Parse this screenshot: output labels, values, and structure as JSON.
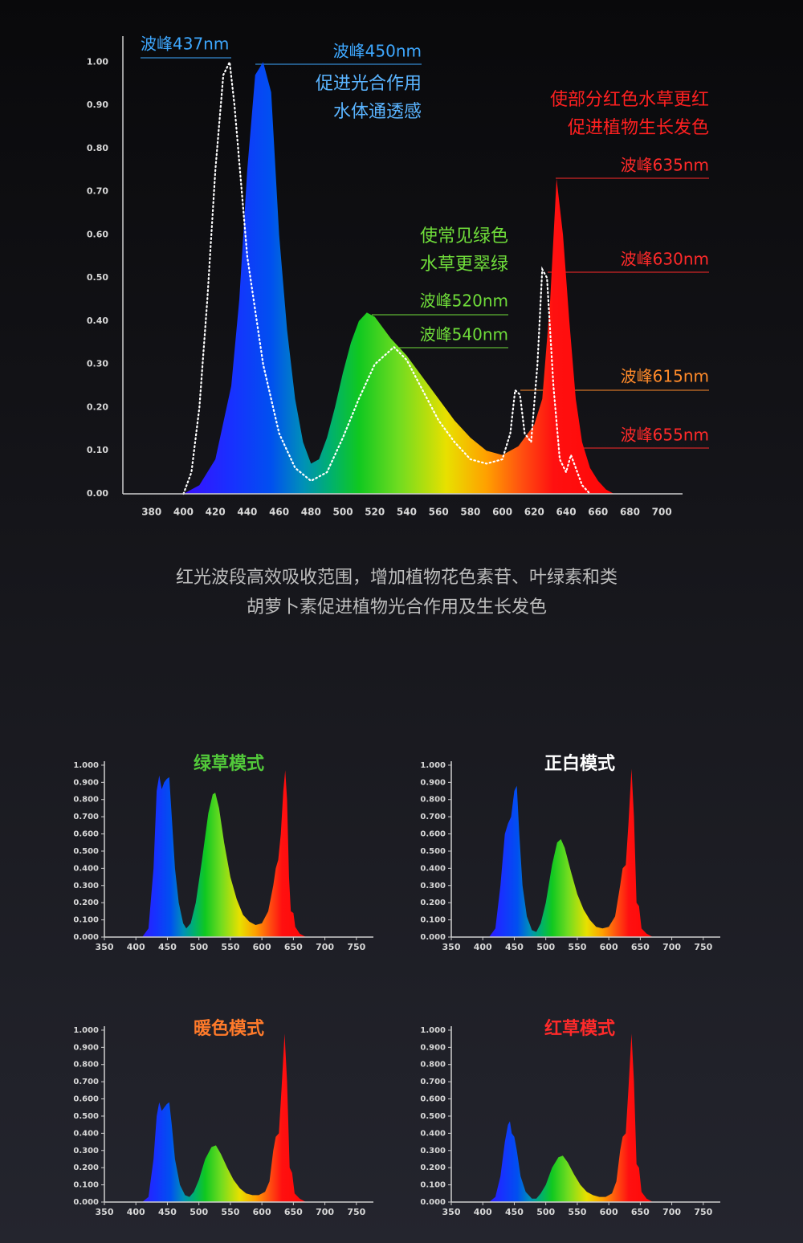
{
  "chart_data": [
    {
      "type": "area",
      "annotations": [
        "波峰437nm",
        "波峰450nm",
        "促进光合作用",
        "水体通透感",
        "使部分红色水草更红",
        "促进植物生长发色",
        "波峰635nm",
        "波峰630nm",
        "波峰615nm",
        "波峰655nm",
        "使常见绿色",
        "水草更翠绿",
        "波峰520nm",
        "波峰540nm"
      ],
      "series": [
        {
          "fill": "spectrum",
          "x": [
            400,
            410,
            420,
            430,
            435,
            440,
            445,
            450,
            455,
            460,
            465,
            470,
            475,
            480,
            485,
            490,
            495,
            500,
            505,
            510,
            515,
            520,
            530,
            540,
            550,
            560,
            570,
            580,
            590,
            600,
            610,
            620,
            625,
            630,
            634,
            638,
            642,
            646,
            650,
            655,
            660,
            665,
            670
          ],
          "values": [
            0,
            0.02,
            0.08,
            0.25,
            0.45,
            0.75,
            0.97,
            1.0,
            0.93,
            0.6,
            0.38,
            0.22,
            0.12,
            0.07,
            0.08,
            0.13,
            0.2,
            0.28,
            0.35,
            0.4,
            0.42,
            0.41,
            0.36,
            0.32,
            0.27,
            0.22,
            0.17,
            0.13,
            0.1,
            0.09,
            0.11,
            0.16,
            0.22,
            0.45,
            0.73,
            0.6,
            0.4,
            0.22,
            0.12,
            0.06,
            0.03,
            0.01,
            0
          ]
        },
        {
          "color": "#ffffff",
          "line_style": "dotted",
          "x": [
            400,
            405,
            410,
            415,
            420,
            425,
            429,
            432,
            440,
            450,
            460,
            470,
            480,
            490,
            500,
            510,
            520,
            532,
            540,
            550,
            560,
            570,
            580,
            590,
            600,
            605,
            608,
            611,
            614,
            618,
            622,
            625,
            628,
            632,
            636,
            640,
            643,
            646,
            650,
            655
          ],
          "values": [
            0,
            0.05,
            0.2,
            0.45,
            0.75,
            0.97,
            1.0,
            0.9,
            0.55,
            0.3,
            0.14,
            0.06,
            0.03,
            0.05,
            0.13,
            0.22,
            0.3,
            0.34,
            0.31,
            0.24,
            0.17,
            0.12,
            0.08,
            0.07,
            0.08,
            0.14,
            0.24,
            0.23,
            0.14,
            0.12,
            0.3,
            0.52,
            0.5,
            0.25,
            0.08,
            0.05,
            0.09,
            0.06,
            0.02,
            0
          ]
        }
      ],
      "xlim": [
        362,
        713
      ],
      "xticks": [
        380,
        400,
        420,
        440,
        460,
        480,
        500,
        520,
        540,
        560,
        580,
        600,
        620,
        640,
        660,
        680,
        700
      ],
      "ylim": [
        0,
        1.06
      ],
      "yticks": [
        {
          "value": 0,
          "label": "0.00"
        },
        {
          "value": 0.1,
          "label": "0.10"
        },
        {
          "value": 0.2,
          "label": "0.20"
        },
        {
          "value": 0.3,
          "label": "0.30"
        },
        {
          "value": 0.4,
          "label": "0.40"
        },
        {
          "value": 0.5,
          "label": "0.50"
        },
        {
          "value": 0.6,
          "label": "0.60"
        },
        {
          "value": 0.7,
          "label": "0.70"
        },
        {
          "value": 0.8,
          "label": "0.80"
        },
        {
          "value": 0.9,
          "label": "0.90"
        },
        {
          "value": 1,
          "label": "1.00"
        }
      ]
    },
    {
      "type": "area",
      "title": "绿草模式",
      "title_color": "#52c93a",
      "fill": "spectrum",
      "x": [
        410,
        420,
        428,
        433,
        437,
        441,
        445,
        449,
        453,
        457,
        462,
        468,
        475,
        480,
        487,
        495,
        505,
        515,
        522,
        526,
        532,
        540,
        550,
        560,
        570,
        580,
        590,
        600,
        610,
        618,
        622,
        626,
        630,
        634,
        637,
        640,
        643,
        646,
        650,
        653,
        660,
        670
      ],
      "values": [
        0,
        0.05,
        0.4,
        0.85,
        0.94,
        0.86,
        0.9,
        0.92,
        0.93,
        0.7,
        0.4,
        0.2,
        0.08,
        0.05,
        0.08,
        0.2,
        0.45,
        0.72,
        0.83,
        0.84,
        0.75,
        0.55,
        0.35,
        0.22,
        0.13,
        0.09,
        0.07,
        0.08,
        0.15,
        0.3,
        0.4,
        0.45,
        0.6,
        0.85,
        0.97,
        0.8,
        0.35,
        0.15,
        0.14,
        0.06,
        0.02,
        0
      ],
      "xlim": [
        350,
        777
      ],
      "xticks": [
        350,
        400,
        450,
        500,
        550,
        600,
        650,
        700,
        750
      ],
      "ylim": [
        0,
        1.023
      ],
      "yticks": [
        {
          "value": 0,
          "label": "0.000"
        },
        {
          "value": 0.1,
          "label": "0.100"
        },
        {
          "value": 0.2,
          "label": "0.200"
        },
        {
          "value": 0.3,
          "label": "0.300"
        },
        {
          "value": 0.4,
          "label": "0.400"
        },
        {
          "value": 0.5,
          "label": "0.500"
        },
        {
          "value": 0.6,
          "label": "0.600"
        },
        {
          "value": 0.7,
          "label": "0.700"
        },
        {
          "value": 0.8,
          "label": "0.800"
        },
        {
          "value": 0.9,
          "label": "0.900"
        },
        {
          "value": 1,
          "label": "1.000"
        }
      ]
    },
    {
      "type": "area",
      "title": "正白模式",
      "title_color": "#ffffff",
      "fill": "spectrum",
      "x": [
        410,
        420,
        428,
        435,
        440,
        445,
        450,
        454,
        458,
        463,
        470,
        478,
        485,
        492,
        500,
        510,
        518,
        524,
        530,
        540,
        550,
        560,
        570,
        580,
        590,
        600,
        610,
        618,
        622,
        627,
        631,
        636,
        640,
        644,
        648,
        652,
        660,
        670
      ],
      "values": [
        0,
        0.05,
        0.3,
        0.6,
        0.66,
        0.7,
        0.85,
        0.88,
        0.6,
        0.3,
        0.12,
        0.04,
        0.03,
        0.08,
        0.2,
        0.42,
        0.55,
        0.57,
        0.52,
        0.38,
        0.25,
        0.16,
        0.1,
        0.06,
        0.05,
        0.06,
        0.12,
        0.3,
        0.4,
        0.42,
        0.65,
        0.98,
        0.7,
        0.2,
        0.18,
        0.05,
        0.02,
        0
      ],
      "xlim": [
        350,
        777
      ],
      "xticks": [
        350,
        400,
        450,
        500,
        550,
        600,
        650,
        700,
        750
      ],
      "ylim": [
        0,
        1.023
      ],
      "yticks": [
        {
          "value": 0,
          "label": "0.000"
        },
        {
          "value": 0.1,
          "label": "0.100"
        },
        {
          "value": 0.2,
          "label": "0.200"
        },
        {
          "value": 0.3,
          "label": "0.300"
        },
        {
          "value": 0.4,
          "label": "0.400"
        },
        {
          "value": 0.5,
          "label": "0.500"
        },
        {
          "value": 0.6,
          "label": "0.600"
        },
        {
          "value": 0.7,
          "label": "0.700"
        },
        {
          "value": 0.8,
          "label": "0.800"
        },
        {
          "value": 0.9,
          "label": "0.900"
        },
        {
          "value": 1,
          "label": "1.000"
        }
      ]
    },
    {
      "type": "area",
      "title": "暖色模式",
      "title_color": "#ff7a2a",
      "fill": "spectrum",
      "x": [
        410,
        420,
        428,
        433,
        437,
        441,
        445,
        449,
        453,
        457,
        462,
        470,
        478,
        485,
        492,
        500,
        510,
        520,
        527,
        535,
        545,
        555,
        565,
        575,
        585,
        595,
        605,
        612,
        618,
        622,
        627,
        631,
        636,
        640,
        644,
        648,
        652,
        660,
        670
      ],
      "values": [
        0,
        0.03,
        0.25,
        0.5,
        0.58,
        0.53,
        0.55,
        0.57,
        0.58,
        0.45,
        0.25,
        0.1,
        0.04,
        0.03,
        0.06,
        0.13,
        0.25,
        0.32,
        0.33,
        0.28,
        0.2,
        0.13,
        0.08,
        0.05,
        0.04,
        0.04,
        0.06,
        0.12,
        0.3,
        0.38,
        0.4,
        0.65,
        0.98,
        0.7,
        0.2,
        0.17,
        0.05,
        0.02,
        0
      ],
      "xlim": [
        350,
        777
      ],
      "xticks": [
        350,
        400,
        450,
        500,
        550,
        600,
        650,
        700,
        750
      ],
      "ylim": [
        0,
        1.023
      ],
      "yticks": [
        {
          "value": 0,
          "label": "0.000"
        },
        {
          "value": 0.1,
          "label": "0.100"
        },
        {
          "value": 0.2,
          "label": "0.200"
        },
        {
          "value": 0.3,
          "label": "0.300"
        },
        {
          "value": 0.4,
          "label": "0.400"
        },
        {
          "value": 0.5,
          "label": "0.500"
        },
        {
          "value": 0.6,
          "label": "0.600"
        },
        {
          "value": 0.7,
          "label": "0.700"
        },
        {
          "value": 0.8,
          "label": "0.800"
        },
        {
          "value": 0.9,
          "label": "0.900"
        },
        {
          "value": 1,
          "label": "1.000"
        }
      ]
    },
    {
      "type": "area",
      "title": "红草模式",
      "title_color": "#ff2a2a",
      "fill": "spectrum",
      "x": [
        410,
        420,
        428,
        435,
        440,
        443,
        446,
        450,
        454,
        460,
        468,
        478,
        485,
        492,
        500,
        510,
        520,
        527,
        535,
        545,
        555,
        565,
        575,
        585,
        595,
        605,
        612,
        618,
        622,
        627,
        631,
        636,
        640,
        644,
        648,
        652,
        660,
        670
      ],
      "values": [
        0,
        0.03,
        0.15,
        0.35,
        0.45,
        0.47,
        0.4,
        0.38,
        0.3,
        0.15,
        0.06,
        0.02,
        0.02,
        0.05,
        0.1,
        0.2,
        0.26,
        0.27,
        0.23,
        0.16,
        0.1,
        0.06,
        0.04,
        0.03,
        0.03,
        0.05,
        0.12,
        0.3,
        0.38,
        0.4,
        0.65,
        0.98,
        0.7,
        0.22,
        0.2,
        0.06,
        0.02,
        0
      ],
      "xlim": [
        350,
        777
      ],
      "xticks": [
        350,
        400,
        450,
        500,
        550,
        600,
        650,
        700,
        750
      ],
      "ylim": [
        0,
        1.023
      ],
      "yticks": [
        {
          "value": 0,
          "label": "0.000"
        },
        {
          "value": 0.1,
          "label": "0.100"
        },
        {
          "value": 0.2,
          "label": "0.200"
        },
        {
          "value": 0.3,
          "label": "0.300"
        },
        {
          "value": 0.4,
          "label": "0.400"
        },
        {
          "value": 0.5,
          "label": "0.500"
        },
        {
          "value": 0.6,
          "label": "0.600"
        },
        {
          "value": 0.7,
          "label": "0.700"
        },
        {
          "value": 0.8,
          "label": "0.800"
        },
        {
          "value": 0.9,
          "label": "0.900"
        },
        {
          "value": 1,
          "label": "1.000"
        }
      ]
    }
  ],
  "caption": [
    "红光波段高效吸收范围，增加植物花色素苷、叶绿素和类",
    "胡萝卜素促进植物光合作用及生长发色"
  ]
}
